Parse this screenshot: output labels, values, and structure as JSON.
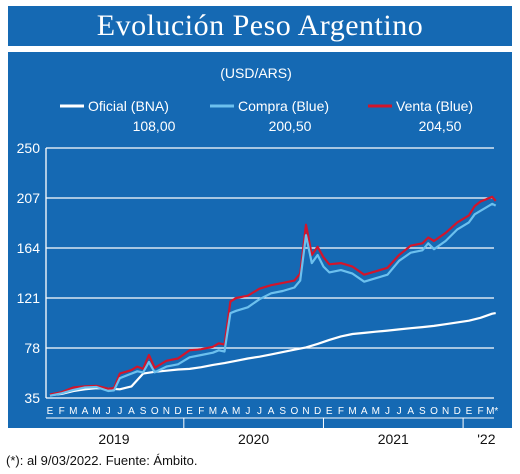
{
  "header": {
    "title": "Evolución Peso Argentino"
  },
  "footer": {
    "note": "(*): al 9/03/2022.  Fuente: Ámbito."
  },
  "colors": {
    "background": "#1569b3",
    "oficial": "#ffffff",
    "compra": "#6cc0ee",
    "venta": "#d2152b",
    "text": "#ffffff"
  },
  "chart_data": {
    "type": "line",
    "unit": "(USD/ARS)",
    "ylim": [
      35,
      250
    ],
    "yticks": [
      35,
      78,
      121,
      164,
      207,
      250
    ],
    "grid": true,
    "legend_placement": "top",
    "month_labels": [
      "E",
      "F",
      "M",
      "A",
      "M",
      "J",
      "J",
      "A",
      "S",
      "O",
      "N",
      "D",
      "E",
      "F",
      "M",
      "A",
      "M",
      "J",
      "J",
      "A",
      "S",
      "O",
      "N",
      "D",
      "E",
      "F",
      "M",
      "A",
      "M",
      "J",
      "J",
      "A",
      "S",
      "O",
      "N",
      "D",
      "E",
      "F",
      "M*"
    ],
    "year_labels": [
      "2019",
      "2020",
      "2021",
      "'22"
    ],
    "series": [
      {
        "name": "Oficial (BNA)",
        "current_value": "108,00",
        "x": [
          0,
          1,
          2,
          3,
          4,
          5,
          6,
          7,
          8,
          9,
          10,
          11,
          12,
          13,
          14,
          15,
          16,
          17,
          18,
          19,
          20,
          21,
          22,
          23,
          24,
          25,
          26,
          27,
          28,
          29,
          30,
          31,
          32,
          33,
          34,
          35,
          36,
          37,
          38,
          38.3
        ],
        "y": [
          37.5,
          38.5,
          41,
          42.5,
          43.5,
          43,
          42.5,
          45,
          56,
          57.5,
          58.5,
          59.5,
          60,
          61.5,
          63.5,
          65,
          67,
          69,
          70.5,
          72.5,
          74.5,
          76.5,
          78.5,
          81.5,
          85,
          88,
          90,
          91,
          92,
          93,
          94,
          95,
          96,
          97,
          98.5,
          100,
          101.5,
          104,
          107.5,
          108
        ]
      },
      {
        "name": "Compra (Blue)",
        "current_value": "200,50",
        "x": [
          0,
          1,
          2,
          3,
          4,
          5,
          5.5,
          6,
          7,
          7.5,
          8,
          8.5,
          9,
          10,
          11,
          12,
          13,
          14,
          14.5,
          15,
          15.5,
          16,
          17,
          18,
          19,
          20,
          21,
          21.5,
          22,
          22.5,
          23,
          23.5,
          24,
          25,
          26,
          27,
          28,
          29,
          30,
          31,
          32,
          32.5,
          33,
          34,
          35,
          36,
          36.5,
          37,
          37.5,
          38,
          38.3
        ],
        "y": [
          37,
          39,
          42,
          44,
          44.5,
          41,
          41.5,
          52,
          56,
          58,
          57,
          66,
          57,
          62,
          64,
          70,
          72,
          74,
          76,
          75,
          108,
          110,
          113,
          120,
          125,
          127,
          130,
          136,
          175,
          151,
          158,
          148,
          143,
          145,
          142,
          135,
          138,
          141,
          153,
          160,
          162,
          168,
          163,
          170,
          180,
          186,
          193,
          196,
          199,
          202,
          200.5
        ]
      },
      {
        "name": "Venta (Blue)",
        "current_value": "204,50",
        "x": [
          0,
          1,
          2,
          3,
          4,
          5,
          5.5,
          6,
          7,
          7.5,
          8,
          8.5,
          9,
          10,
          11,
          12,
          13,
          14,
          14.5,
          15,
          15.5,
          16,
          17,
          18,
          19,
          20,
          21,
          21.5,
          22,
          22.5,
          23,
          23.5,
          24,
          25,
          26,
          27,
          28,
          29,
          30,
          31,
          32,
          32.5,
          33,
          34,
          35,
          36,
          36.5,
          37,
          37.5,
          38,
          38.3
        ],
        "y": [
          38,
          40,
          44,
          45,
          45.5,
          43,
          43.5,
          56,
          59,
          62,
          60,
          72,
          61,
          67,
          69,
          76,
          77,
          79,
          82,
          81,
          118,
          121,
          123,
          129,
          132,
          134,
          136,
          142,
          184,
          158,
          165,
          156,
          150,
          151,
          148,
          141,
          144,
          147,
          158,
          166,
          168,
          173,
          170,
          177,
          186,
          192,
          200,
          204,
          206,
          208,
          204.5
        ]
      }
    ]
  }
}
